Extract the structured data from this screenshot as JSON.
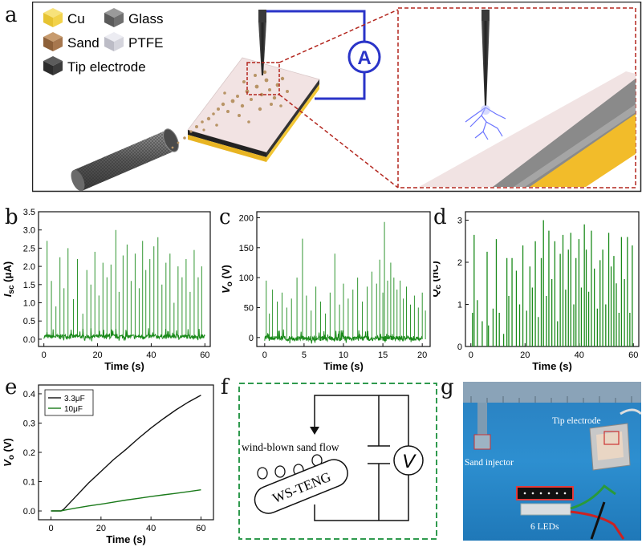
{
  "panels": {
    "a": "a",
    "b": "b",
    "c": "c",
    "d": "d",
    "e": "e",
    "f": "f",
    "g": "g"
  },
  "panel_a": {
    "legend": [
      {
        "label": "Cu",
        "color": "#f2d24a"
      },
      {
        "label": "Sand",
        "color": "#a7774e"
      },
      {
        "label": "Tip electrode",
        "color": "#3c3c3c"
      },
      {
        "label": "Glass",
        "color": "#6f6f6f"
      },
      {
        "label": "PTFE",
        "color": "#d4d4dc"
      }
    ],
    "meter": "A",
    "colors": {
      "circuit": "#2a34c8",
      "zoom": "#b3261e",
      "frame": "#222222"
    }
  },
  "chart_data": [
    {
      "panel": "b",
      "type": "line",
      "title": "",
      "xlabel": "Time (s)",
      "ylabel": "I_sc (μA)",
      "xlim": [
        -2,
        62
      ],
      "ylim": [
        -0.2,
        3.5
      ],
      "xticks": [
        0,
        20,
        40,
        60
      ],
      "yticks": [
        "0.0",
        "0.5",
        "1.0",
        "1.5",
        "2.0",
        "2.5",
        "3.0",
        "3.5"
      ],
      "ytick_values": [
        0,
        0.5,
        1,
        1.5,
        2,
        2.5,
        3,
        3.5
      ],
      "baseline": 0.05,
      "noise": 0.12,
      "color": "#1a8a1a",
      "peaks": [
        [
          1.2,
          2.7
        ],
        [
          2.8,
          1.6
        ],
        [
          4.5,
          0.9
        ],
        [
          6.0,
          2.25
        ],
        [
          7.5,
          1.4
        ],
        [
          9.0,
          2.5
        ],
        [
          11.0,
          1.1
        ],
        [
          12.5,
          2.2
        ],
        [
          14.5,
          0.7
        ],
        [
          16.0,
          1.9
        ],
        [
          17.5,
          1.5
        ],
        [
          19.0,
          2.4
        ],
        [
          20.5,
          1.2
        ],
        [
          22.0,
          2.1
        ],
        [
          23.5,
          1.7
        ],
        [
          25.0,
          2.05
        ],
        [
          26.8,
          3.0
        ],
        [
          28.0,
          1.3
        ],
        [
          29.5,
          2.3
        ],
        [
          31.0,
          2.6
        ],
        [
          32.5,
          1.6
        ],
        [
          34.0,
          2.35
        ],
        [
          35.5,
          1.4
        ],
        [
          36.8,
          2.7
        ],
        [
          38.0,
          1.9
        ],
        [
          39.5,
          2.2
        ],
        [
          41.0,
          2.55
        ],
        [
          42.5,
          2.8
        ],
        [
          44.0,
          1.5
        ],
        [
          45.5,
          2.1
        ],
        [
          47.0,
          2.35
        ],
        [
          48.5,
          1.0
        ],
        [
          50.0,
          2.0
        ],
        [
          51.5,
          1.7
        ],
        [
          53.0,
          2.2
        ],
        [
          54.5,
          1.3
        ],
        [
          56.0,
          2.45
        ],
        [
          57.5,
          1.7
        ],
        [
          58.8,
          2.0
        ]
      ]
    },
    {
      "panel": "c",
      "type": "line",
      "title": "",
      "xlabel": "Time (s)",
      "ylabel": "V_o (V)",
      "xlim": [
        -1,
        21
      ],
      "ylim": [
        -15,
        210
      ],
      "xticks": [
        0,
        5,
        10,
        15,
        20
      ],
      "yticks": [
        "0",
        "50",
        "100",
        "150",
        "200"
      ],
      "ytick_values": [
        0,
        50,
        100,
        150,
        200
      ],
      "baseline": -3,
      "noise": 8,
      "color": "#1a8a1a",
      "peaks": [
        [
          0.2,
          95
        ],
        [
          0.6,
          40
        ],
        [
          1.0,
          80
        ],
        [
          1.6,
          60
        ],
        [
          2.2,
          75
        ],
        [
          2.8,
          50
        ],
        [
          3.4,
          65
        ],
        [
          4.1,
          100
        ],
        [
          4.8,
          165
        ],
        [
          5.3,
          70
        ],
        [
          5.9,
          45
        ],
        [
          6.5,
          85
        ],
        [
          7.1,
          60
        ],
        [
          7.7,
          40
        ],
        [
          8.3,
          75
        ],
        [
          8.9,
          140
        ],
        [
          9.5,
          55
        ],
        [
          10.0,
          90
        ],
        [
          10.6,
          65
        ],
        [
          11.2,
          80
        ],
        [
          11.8,
          100
        ],
        [
          12.4,
          60
        ],
        [
          13.0,
          85
        ],
        [
          13.6,
          110
        ],
        [
          14.2,
          90
        ],
        [
          14.6,
          130
        ],
        [
          15.0,
          75
        ],
        [
          15.2,
          193
        ],
        [
          15.6,
          95
        ],
        [
          16.0,
          125
        ],
        [
          16.4,
          100
        ],
        [
          16.8,
          80
        ],
        [
          17.2,
          95
        ],
        [
          17.6,
          65
        ],
        [
          18.0,
          85
        ],
        [
          18.5,
          55
        ],
        [
          19.0,
          70
        ],
        [
          19.5,
          50
        ],
        [
          20.0,
          75
        ],
        [
          20.4,
          45
        ]
      ]
    },
    {
      "panel": "d",
      "type": "bar",
      "title": "",
      "xlabel": "Time (s)",
      "ylabel": "Q_c (nC)",
      "xlim": [
        -2,
        62
      ],
      "ylim": [
        0,
        3.2
      ],
      "xticks": [
        0,
        20,
        40,
        60
      ],
      "yticks": [
        "0",
        "1",
        "2",
        "3"
      ],
      "ytick_values": [
        0,
        1,
        2,
        3
      ],
      "color": "#1a8a1a",
      "values": [
        [
          0.6,
          0.8
        ],
        [
          1.2,
          2.65
        ],
        [
          2.4,
          1.1
        ],
        [
          4.2,
          0.6
        ],
        [
          6.0,
          2.25
        ],
        [
          6.5,
          0.5
        ],
        [
          8.2,
          0.9
        ],
        [
          9.4,
          2.55
        ],
        [
          10.5,
          0.8
        ],
        [
          12.1,
          0.3
        ],
        [
          13.3,
          2.1
        ],
        [
          14.0,
          1.2
        ],
        [
          15.2,
          2.1
        ],
        [
          16.8,
          1.8
        ],
        [
          18.0,
          1.0
        ],
        [
          19.2,
          2.4
        ],
        [
          20.6,
          0.85
        ],
        [
          21.8,
          1.9
        ],
        [
          22.7,
          1.4
        ],
        [
          23.8,
          2.5
        ],
        [
          24.9,
          0.7
        ],
        [
          26.0,
          2.1
        ],
        [
          26.8,
          3.0
        ],
        [
          27.9,
          1.2
        ],
        [
          28.8,
          2.75
        ],
        [
          29.9,
          1.6
        ],
        [
          31.0,
          2.5
        ],
        [
          32.0,
          0.6
        ],
        [
          33.0,
          2.2
        ],
        [
          34.0,
          2.65
        ],
        [
          35.0,
          1.35
        ],
        [
          36.0,
          2.3
        ],
        [
          36.9,
          2.7
        ],
        [
          38.0,
          1.0
        ],
        [
          38.8,
          2.1
        ],
        [
          39.9,
          2.55
        ],
        [
          40.8,
          1.4
        ],
        [
          41.9,
          2.9
        ],
        [
          42.6,
          2.3
        ],
        [
          43.5,
          1.3
        ],
        [
          44.5,
          2.75
        ],
        [
          45.6,
          1.85
        ],
        [
          46.7,
          0.9
        ],
        [
          47.7,
          2.05
        ],
        [
          48.7,
          2.3
        ],
        [
          49.8,
          1.0
        ],
        [
          50.9,
          2.7
        ],
        [
          51.8,
          1.9
        ],
        [
          52.8,
          2.15
        ],
        [
          53.7,
          1.5
        ],
        [
          54.7,
          0.8
        ],
        [
          55.6,
          2.6
        ],
        [
          56.7,
          1.6
        ],
        [
          57.8,
          2.6
        ],
        [
          58.7,
          0.8
        ],
        [
          59.6,
          2.4
        ]
      ]
    },
    {
      "panel": "e",
      "type": "line",
      "title": "",
      "xlabel": "Time (s)",
      "ylabel": "V_o (V)",
      "xlim": [
        -5,
        65
      ],
      "ylim": [
        -0.03,
        0.43
      ],
      "xticks": [
        0,
        20,
        40,
        60
      ],
      "yticks": [
        "0.0",
        "0.1",
        "0.2",
        "0.3",
        "0.4"
      ],
      "ytick_values": [
        0,
        0.1,
        0.2,
        0.3,
        0.4
      ],
      "legend_position": "top-left",
      "series": [
        {
          "name": "3.3μF",
          "color": "#111111",
          "x": [
            0,
            4,
            5,
            10,
            15,
            20,
            25,
            30,
            35,
            40,
            45,
            50,
            55,
            60
          ],
          "y": [
            0,
            0,
            0.005,
            0.05,
            0.095,
            0.135,
            0.175,
            0.21,
            0.248,
            0.283,
            0.315,
            0.345,
            0.372,
            0.395
          ]
        },
        {
          "name": "10μF",
          "color": "#1a7a1a",
          "x": [
            0,
            4,
            5,
            10,
            15,
            20,
            25,
            30,
            35,
            40,
            45,
            50,
            55,
            60
          ],
          "y": [
            0,
            0,
            0.002,
            0.01,
            0.017,
            0.023,
            0.03,
            0.037,
            0.043,
            0.049,
            0.055,
            0.06,
            0.066,
            0.072
          ]
        }
      ]
    }
  ],
  "panel_f": {
    "sand_flow": "wind-blown sand flow",
    "device": "WS-TENG",
    "meter": "V",
    "colors": {
      "frame": "#2f9a4e"
    }
  },
  "panel_g": {
    "labels": {
      "tip": "Tip electrode",
      "sand": "Sand injector",
      "leds": "6 LEDs"
    },
    "colors": {
      "bg": "#2d8fd0",
      "led_box": "#e23a3a"
    }
  }
}
